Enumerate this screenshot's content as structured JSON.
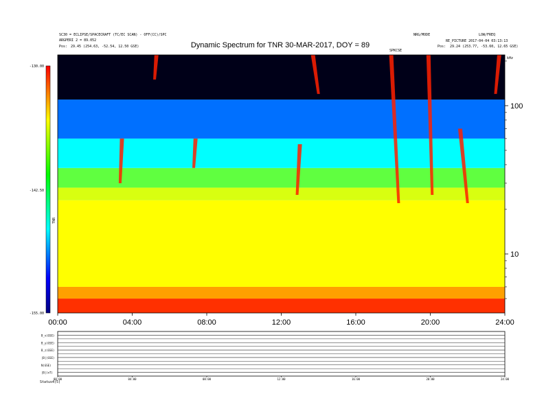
{
  "header": {
    "left_line1": "SC30 = ECLIPSE/SPACECRAFT (TC/EC SCAN) - OFF(CC)/SPC",
    "left_line2": "ARGPERI 2 = 89.052",
    "left_pos_label": "Pos:",
    "left_pos_value": "29.45 (254.63, -52.54, 12.50 GSE)",
    "title": "Dynamic Spectrum for TNR 30-MAR-2017, DOY = 89",
    "right_line1a": "NRG/MODE",
    "right_line1b": "LOW/FREQ",
    "right_line2": "RE_PICTURE 2017-04-04 03:13:13",
    "right_pos_label": "Pos:",
    "right_pos_value": "29.24 (253.77, -53.60, 12.65 GSE)",
    "marker_label": "SPKCSE",
    "khz_label": "kHz"
  },
  "colorbar": {
    "label": "TNR",
    "ticks": [
      "-130.00",
      "-142.50",
      "-155.00"
    ],
    "colors": [
      "#ff0000",
      "#ffff00",
      "#00ff00",
      "#00ffff",
      "#0000ff",
      "#000080"
    ]
  },
  "chart_data": {
    "type": "heatmap",
    "title": "Dynamic Spectrum for TNR 30-MAR-2017, DOY = 89",
    "x_ticks": [
      "00:00",
      "04:00",
      "08:00",
      "12:00",
      "16:00",
      "20:00",
      "24:00"
    ],
    "x_range_hours": [
      0,
      24
    ],
    "y_ticks": [
      100,
      10
    ],
    "y_scale": "log",
    "y_range_khz": [
      4,
      220
    ],
    "z_range": [
      -155.0,
      -130.0
    ],
    "background_bands": [
      {
        "from_khz": 4,
        "to_khz": 5,
        "color": "#ff3000"
      },
      {
        "from_khz": 5,
        "to_khz": 6,
        "color": "#ffa000"
      },
      {
        "from_khz": 6,
        "to_khz": 23,
        "color": "#ffff00"
      },
      {
        "from_khz": 23,
        "to_khz": 28,
        "color": "#d8ff10"
      },
      {
        "from_khz": 28,
        "to_khz": 38,
        "color": "#60ff40"
      },
      {
        "from_khz": 38,
        "to_khz": 60,
        "color": "#00ffff"
      },
      {
        "from_khz": 60,
        "to_khz": 110,
        "color": "#0070ff"
      },
      {
        "from_khz": 110,
        "to_khz": 220,
        "color": "#000018"
      }
    ],
    "bursts": [
      {
        "t_start": 3.45,
        "t_end": 3.35,
        "f_top_khz": 60,
        "f_bottom_khz": 30
      },
      {
        "t_start": 5.3,
        "t_end": 5.2,
        "f_top_khz": 220,
        "f_bottom_khz": 150
      },
      {
        "t_start": 7.4,
        "t_end": 7.3,
        "f_top_khz": 60,
        "f_bottom_khz": 38
      },
      {
        "t_start": 13.0,
        "t_end": 12.85,
        "f_top_khz": 55,
        "f_bottom_khz": 25
      },
      {
        "t_start": 13.7,
        "t_end": 14.0,
        "f_top_khz": 220,
        "f_bottom_khz": 120
      },
      {
        "t_start": 17.9,
        "t_end": 18.3,
        "f_top_khz": 220,
        "f_bottom_khz": 22
      },
      {
        "t_start": 19.9,
        "t_end": 20.1,
        "f_top_khz": 220,
        "f_bottom_khz": 25
      },
      {
        "t_start": 21.6,
        "t_end": 22.0,
        "f_top_khz": 70,
        "f_bottom_khz": 22
      },
      {
        "t_start": 23.7,
        "t_end": 23.5,
        "f_top_khz": 220,
        "f_bottom_khz": 120
      }
    ]
  },
  "lower_panel": {
    "rows": [
      {
        "label": "B_x(GSE)"
      },
      {
        "label": "B_y(GSE)"
      },
      {
        "label": "B_z(GSE)"
      },
      {
        "label": "|B|(GSE)"
      },
      {
        "label": "N(GSE)"
      },
      {
        "label": "|B|(nT)"
      }
    ],
    "time_ticks": [
      "00:00",
      "04:00",
      "08:00",
      "12:00",
      "16:00",
      "20:00",
      "24:00"
    ],
    "status_label": "Status",
    "status_value": "4(5)"
  }
}
